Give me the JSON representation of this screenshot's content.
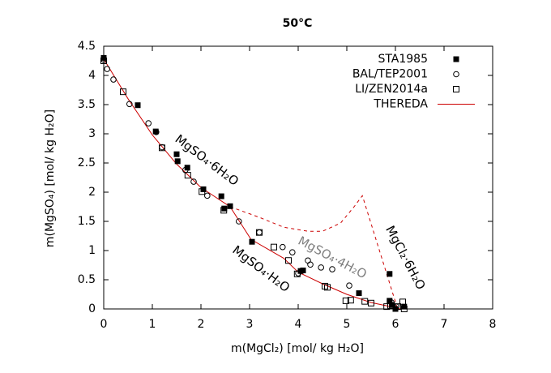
{
  "chart_data": {
    "type": "scatter",
    "title": "50°C",
    "x_label": "m(MgCl₂) [mol/ kg H₂O]",
    "y_label": "m(MgSO₄) [mol/ kg H₂O]",
    "xlim": [
      0,
      8
    ],
    "ylim": [
      0,
      4.5
    ],
    "xticks": [
      0,
      1,
      2,
      3,
      4,
      5,
      6,
      7,
      8
    ],
    "yticks": [
      0,
      0.5,
      1,
      1.5,
      2,
      2.5,
      3,
      3.5,
      4,
      4.5
    ],
    "legend": "top-right",
    "series": [
      {
        "name": "STA1985",
        "marker": "filled-square",
        "color": "#000000",
        "x": [
          0,
          0.7,
          1.07,
          1.5,
          1.52,
          1.72,
          2.05,
          2.42,
          2.48,
          2.6,
          3.05,
          4.05,
          4.1,
          5.25,
          5.88,
          5.88,
          5.93,
          6.0,
          6.18
        ],
        "values": [
          4.3,
          3.49,
          3.04,
          2.65,
          2.53,
          2.42,
          2.05,
          1.93,
          1.72,
          1.76,
          1.15,
          0.65,
          0.66,
          0.27,
          0.6,
          0.14,
          0.07,
          0.0,
          0.04
        ]
      },
      {
        "name": "BAL/TEP2001",
        "marker": "circle",
        "color": "#000000",
        "x": [
          0,
          0.07,
          0.2,
          0.53,
          0.92,
          1.08,
          1.2,
          1.68,
          1.85,
          2.13,
          2.78,
          3.2,
          3.68,
          3.88,
          4.2,
          4.25,
          4.47,
          4.7,
          4.0,
          5.05,
          5.92,
          6.02
        ],
        "values": [
          4.27,
          4.11,
          3.93,
          3.51,
          3.18,
          3.03,
          2.77,
          2.38,
          2.18,
          1.94,
          1.5,
          1.31,
          1.06,
          0.97,
          0.83,
          0.76,
          0.71,
          0.68,
          0.61,
          0.4,
          0.11,
          0.04
        ]
      },
      {
        "name": "LI/ZEN2014a",
        "marker": "open-square",
        "color": "#000000",
        "x": [
          0,
          0.4,
          1.2,
          1.73,
          2.02,
          2.47,
          3.2,
          3.5,
          3.8,
          3.98,
          4.55,
          4.6,
          4.98,
          5.08,
          5.37,
          5.5,
          5.82,
          5.9,
          6.05,
          6.15,
          6.18
        ],
        "values": [
          4.25,
          3.72,
          2.76,
          2.29,
          2.01,
          1.69,
          1.31,
          1.06,
          0.83,
          0.6,
          0.39,
          0.37,
          0.14,
          0.15,
          0.13,
          0.1,
          0.04,
          0.06,
          0.04,
          0.12,
          0
        ]
      },
      {
        "name": "THEREDA",
        "marker": "line",
        "color": "#cc0000",
        "x": [
          0,
          0.5,
          1,
          1.5,
          2,
          2.6,
          3.03,
          3.7,
          4,
          4.5,
          5,
          5.5,
          5.9,
          6.1
        ],
        "values": [
          4.28,
          3.6,
          2.98,
          2.48,
          2.08,
          1.75,
          1.19,
          0.87,
          0.63,
          0.43,
          0.25,
          0.11,
          0.04,
          0
        ]
      },
      {
        "marker": "dashed-line",
        "color": "#cc0000",
        "x": [
          2.6,
          3.2,
          3.7,
          4.2,
          4.5,
          4.87,
          5.15,
          5.32,
          6.03
        ],
        "values": [
          1.75,
          1.57,
          1.4,
          1.33,
          1.33,
          1.47,
          1.75,
          1.94,
          0.04
        ]
      }
    ],
    "annotations": [
      {
        "text": "MgSO₄·6H₂O",
        "color": "#000000"
      },
      {
        "text": "MgSO₄·4H₂O",
        "color": "#808080"
      },
      {
        "text": "MgSO₄·H₂O",
        "color": "#000000"
      },
      {
        "text": "MgCl₂·6H₂O",
        "color": "#000000"
      }
    ]
  }
}
